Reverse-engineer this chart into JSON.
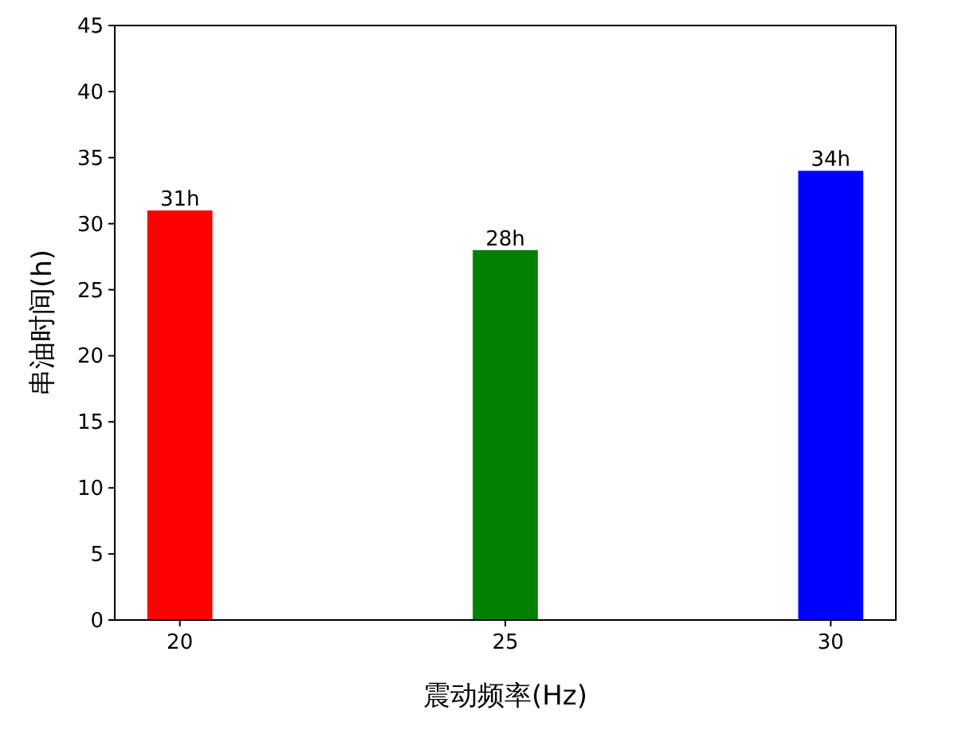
{
  "chart_data": {
    "type": "bar",
    "xlabel": "震动频率(Hz)",
    "ylabel": "串油时间(h)",
    "x": [
      20,
      25,
      30
    ],
    "values": [
      31,
      28,
      34
    ],
    "colors": [
      "#ff0000",
      "#008000",
      "#0000ff"
    ],
    "value_labels": [
      "31h",
      "28h",
      "34h"
    ],
    "xlim": [
      19,
      31
    ],
    "xticks": [
      20,
      25,
      30
    ],
    "ylim": [
      0,
      45
    ],
    "yticks": [
      0,
      5,
      10,
      15,
      20,
      25,
      30,
      35,
      40,
      45
    ],
    "grid": false
  }
}
